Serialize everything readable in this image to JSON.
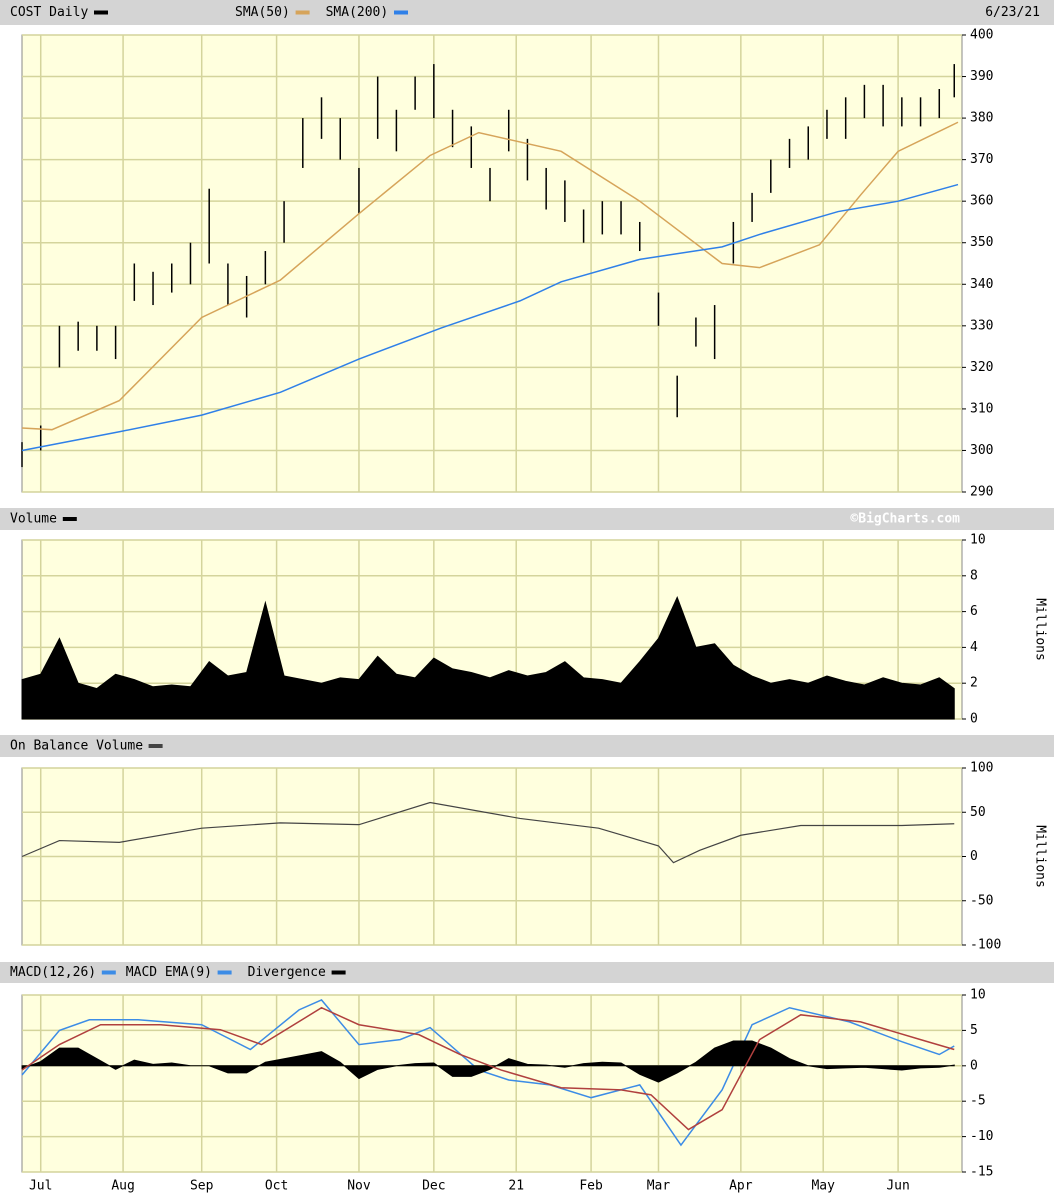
{
  "chart_data": [
    {
      "type": "range",
      "title": "COST Daily",
      "date": "6/23/21",
      "color": "#000000",
      "xlim": [
        0,
        250
      ],
      "x": [
        0,
        5,
        10,
        15,
        20,
        25,
        30,
        35,
        40,
        45,
        50,
        55,
        60,
        65,
        70,
        75,
        80,
        85,
        90,
        95,
        100,
        105,
        110,
        115,
        120,
        125,
        130,
        135,
        140,
        145,
        150,
        155,
        160,
        165,
        170,
        175,
        180,
        185,
        190,
        195,
        200,
        205,
        210,
        215,
        220,
        225,
        230,
        235,
        240,
        245,
        249
      ],
      "high": [
        302,
        306,
        330,
        331,
        330,
        330,
        345,
        343,
        345,
        350,
        363,
        345,
        342,
        348,
        360,
        380,
        385,
        380,
        368,
        390,
        382,
        390,
        393,
        382,
        378,
        368,
        382,
        375,
        368,
        365,
        358,
        360,
        360,
        355,
        338,
        318,
        332,
        335,
        355,
        362,
        370,
        375,
        378,
        382,
        385,
        388,
        388,
        385,
        385,
        387,
        393
      ],
      "low": [
        296,
        300,
        320,
        324,
        324,
        322,
        336,
        335,
        338,
        340,
        345,
        335,
        332,
        340,
        350,
        368,
        375,
        370,
        357,
        375,
        372,
        382,
        380,
        373,
        368,
        360,
        372,
        365,
        358,
        355,
        350,
        352,
        352,
        348,
        330,
        308,
        325,
        322,
        345,
        355,
        362,
        368,
        370,
        375,
        375,
        380,
        378,
        378,
        378,
        380,
        385
      ],
      "ylim": [
        290,
        400
      ],
      "yticks": [
        290,
        300,
        310,
        320,
        330,
        340,
        350,
        360,
        370,
        380,
        390,
        400
      ],
      "grid": true,
      "series": [
        {
          "name": "SMA(50)",
          "color": "#d6a45a",
          "x": [
            0,
            8,
            26,
            48,
            69,
            90,
            109,
            122,
            144,
            165,
            187,
            197,
            213,
            224,
            234,
            250
          ],
          "values": [
            305.4,
            305,
            312,
            332,
            341,
            357,
            371,
            376.5,
            372,
            360,
            345,
            344,
            349.5,
            361.5,
            372,
            379
          ]
        },
        {
          "name": "SMA(200)",
          "color": "#2f80e8",
          "x": [
            0,
            26,
            48,
            69,
            90,
            112,
            133,
            144,
            165,
            187,
            197,
            218,
            234,
            250
          ],
          "values": [
            300,
            304.5,
            308.5,
            314,
            322,
            329.5,
            336,
            340.6,
            346,
            349,
            352,
            357.5,
            360,
            364
          ]
        }
      ]
    },
    {
      "type": "area",
      "title": "Volume",
      "credit": "©BigCharts.com",
      "y_label": "Millions",
      "color": "#000000",
      "xlim": [
        0,
        250
      ],
      "x": [
        0,
        5,
        10,
        15,
        20,
        25,
        30,
        35,
        40,
        45,
        50,
        55,
        60,
        65,
        70,
        75,
        80,
        85,
        90,
        95,
        100,
        105,
        110,
        115,
        120,
        125,
        130,
        135,
        140,
        145,
        150,
        155,
        160,
        165,
        170,
        175,
        180,
        185,
        190,
        195,
        200,
        205,
        210,
        215,
        220,
        225,
        230,
        235,
        240,
        245,
        249
      ],
      "values": [
        2.2,
        2.5,
        4.5,
        2.0,
        1.7,
        2.5,
        2.2,
        1.8,
        1.9,
        1.8,
        3.2,
        2.4,
        2.6,
        6.5,
        2.4,
        2.2,
        2.0,
        2.3,
        2.2,
        3.5,
        2.5,
        2.3,
        3.4,
        2.8,
        2.6,
        2.3,
        2.7,
        2.4,
        2.6,
        3.2,
        2.3,
        2.2,
        2.0,
        3.2,
        4.5,
        6.8,
        4.0,
        4.2,
        3.0,
        2.4,
        2.0,
        2.2,
        2.0,
        2.4,
        2.1,
        1.9,
        2.3,
        2.0,
        1.9,
        2.3,
        1.7
      ],
      "ylim": [
        0,
        10
      ],
      "yticks": [
        0,
        2,
        4,
        6,
        8,
        10
      ],
      "grid": true
    },
    {
      "type": "line",
      "title": "On Balance Volume",
      "y_label": "Millions",
      "color": "#444444",
      "xlim": [
        0,
        250
      ],
      "x": [
        0,
        10,
        26,
        48,
        69,
        90,
        109,
        133,
        154,
        170,
        174,
        181,
        192,
        208,
        235,
        249
      ],
      "values": [
        0,
        18,
        16,
        32,
        38,
        36,
        61,
        43,
        32,
        12,
        -7,
        7,
        24,
        35,
        35,
        37
      ],
      "ylim": [
        -100,
        100
      ],
      "yticks": [
        -100,
        -50,
        0,
        50,
        100
      ],
      "grid": true
    },
    {
      "type": "macd",
      "title": "MACD(12,26)",
      "xlim": [
        0,
        250
      ],
      "xticks": [
        {
          "value": 5,
          "label": "Jul"
        },
        {
          "value": 27,
          "label": "Aug"
        },
        {
          "value": 48,
          "label": "Sep"
        },
        {
          "value": 68,
          "label": "Oct"
        },
        {
          "value": 90,
          "label": "Nov"
        },
        {
          "value": 110,
          "label": "Dec"
        },
        {
          "value": 132,
          "label": "21"
        },
        {
          "value": 152,
          "label": "Feb"
        },
        {
          "value": 170,
          "label": "Mar"
        },
        {
          "value": 192,
          "label": "Apr"
        },
        {
          "value": 214,
          "label": "May"
        },
        {
          "value": 234,
          "label": "Jun"
        }
      ],
      "ylim": [
        -15,
        10
      ],
      "yticks": [
        -15,
        -10,
        -5,
        0,
        5,
        10
      ],
      "grid": true,
      "series": [
        {
          "name": "MACD EMA(9)",
          "color": "#3c8ce6",
          "x": [
            0,
            10,
            18,
            31,
            48,
            61,
            74,
            80,
            90,
            101,
            109,
            122,
            130,
            141,
            152,
            165,
            176,
            187,
            195,
            205,
            221,
            235,
            245,
            249
          ],
          "values": [
            -1.3,
            5,
            6.5,
            6.5,
            5.8,
            2.3,
            7.9,
            9.3,
            3,
            3.7,
            5.4,
            -0.6,
            -2,
            -2.7,
            -4.5,
            -2.7,
            -11.2,
            -3.4,
            5.8,
            8.2,
            6.2,
            3.4,
            1.6,
            2.8
          ]
        },
        {
          "name": "Divergence",
          "color": "#000000",
          "type": "area",
          "x": [
            0,
            5,
            10,
            15,
            20,
            25,
            30,
            35,
            40,
            45,
            50,
            55,
            60,
            65,
            70,
            75,
            80,
            85,
            90,
            95,
            100,
            105,
            110,
            115,
            120,
            125,
            130,
            135,
            140,
            145,
            150,
            155,
            160,
            165,
            170,
            175,
            180,
            185,
            190,
            195,
            200,
            205,
            210,
            215,
            220,
            225,
            230,
            235,
            240,
            245,
            249
          ],
          "values": [
            -0.4,
            0.6,
            2.5,
            2.5,
            1.0,
            -0.5,
            0.8,
            0.2,
            0.4,
            0,
            0,
            -1.0,
            -1.0,
            0.5,
            1.0,
            1.5,
            2.0,
            0.5,
            -1.8,
            -0.5,
            0,
            0.3,
            0.4,
            -1.5,
            -1.5,
            -0.5,
            1.0,
            0.2,
            0.1,
            -0.2,
            0.3,
            0.5,
            0.4,
            -1.2,
            -2.3,
            -1.0,
            0.5,
            2.5,
            3.5,
            3.5,
            2.5,
            1.0,
            0,
            -0.4,
            -0.3,
            -0.2,
            -0.4,
            -0.6,
            -0.3,
            -0.2,
            0.1
          ]
        },
        {
          "name": "",
          "color": "#b0403e",
          "x": [
            0,
            10,
            21,
            37,
            53,
            64,
            80,
            90,
            106,
            117,
            128,
            144,
            160,
            168,
            178,
            187,
            197,
            208,
            224,
            240,
            249
          ],
          "values": [
            -0.6,
            3,
            5.8,
            5.8,
            5.1,
            3,
            8.2,
            5.8,
            4.4,
            1.6,
            -0.6,
            -3.1,
            -3.4,
            -4.1,
            -9,
            -6.2,
            3.7,
            7.2,
            6.2,
            3.7,
            2.3
          ]
        }
      ]
    }
  ]
}
